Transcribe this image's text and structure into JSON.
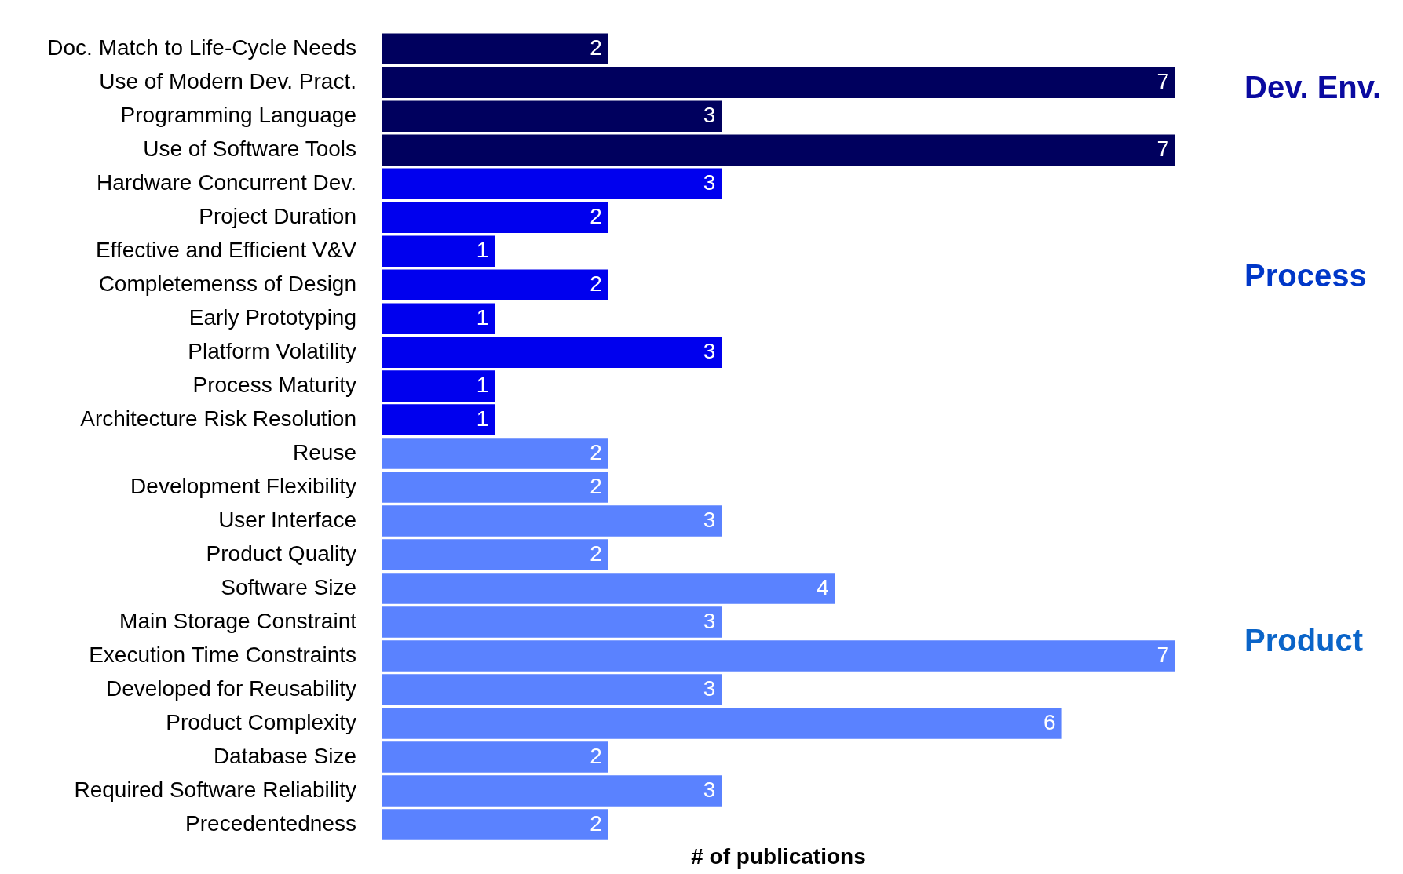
{
  "chart_data": {
    "type": "bar",
    "orientation": "horizontal",
    "relative": false,
    "xlabel": "# of publications",
    "categories": [
      "Doc. Match to Life-Cycle Needs",
      "Use of Modern Dev. Pract.",
      "Programming Language",
      "Use of Software Tools",
      "Hardware Concurrent Dev.",
      "Project Duration",
      "Effective and Efficient V&V",
      "Completemenss of Design",
      "Early Prototyping",
      "Platform Volatility",
      "Process Maturity",
      "Architecture Risk Resolution",
      "Reuse",
      "Development Flexibility",
      "User Interface",
      "Product Quality",
      "Software Size",
      "Main Storage Constraint",
      "Execution Time Constraints",
      "Developed for Reusability",
      "Product Complexity",
      "Database Size",
      "Required Software Reliability",
      "Precedentedness"
    ],
    "values": [
      2,
      7,
      3,
      7,
      3,
      2,
      1,
      2,
      1,
      3,
      1,
      1,
      2,
      2,
      3,
      2,
      4,
      3,
      7,
      3,
      6,
      2,
      3,
      2
    ],
    "colors": [
      "#00005e",
      "#00005e",
      "#00005e",
      "#00005e",
      "#0000ee",
      "#0000ee",
      "#0000ee",
      "#0000ee",
      "#0000ee",
      "#0000ee",
      "#0000ee",
      "#0000ee",
      "#5a82ff",
      "#5a82ff",
      "#5a82ff",
      "#5a82ff",
      "#5a82ff",
      "#5a82ff",
      "#5a82ff",
      "#5a82ff",
      "#5a82ff",
      "#5a82ff",
      "#5a82ff",
      "#5a82ff"
    ],
    "data_labels": true,
    "grid": false,
    "legend": false,
    "annotations": [
      "Dev. Env.",
      "Process",
      "Product"
    ]
  }
}
